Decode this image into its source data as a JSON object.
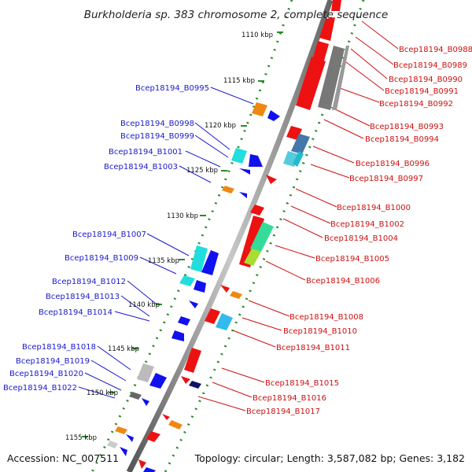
{
  "title": "Burkholderia sp. 383 chromosome 2, complete sequence",
  "accession": "Accession: NC_007511",
  "topology": "Topology: circular; Length: 3,587,082 bp; Genes: 3,182",
  "ticks": [
    "1110 kbp",
    "1115 kbp",
    "1120 kbp",
    "1125 kbp",
    "1130 kbp",
    "1135 kbp",
    "1140 kbp",
    "1145 kbp",
    "1150 kbp",
    "1155 kbp"
  ],
  "left_labels": [
    "Bcep18194_B0995",
    "Bcep18194_B0998",
    "Bcep18194_B0999",
    "Bcep18194_B1001",
    "Bcep18194_B1003",
    "Bcep18194_B1007",
    "Bcep18194_B1009",
    "Bcep18194_B1012",
    "Bcep18194_B1013",
    "Bcep18194_B1014",
    "Bcep18194_B1018",
    "Bcep18194_B1019",
    "Bcep18194_B1020",
    "Bcep18194_B1022"
  ],
  "right_labels": [
    "Bcep18194_B0988",
    "Bcep18194_B0989",
    "Bcep18194_B0990",
    "Bcep18194_B0991",
    "Bcep18194_B0992",
    "Bcep18194_B0993",
    "Bcep18194_B0994",
    "Bcep18194_B0996",
    "Bcep18194_B0997",
    "Bcep18194_B1000",
    "Bcep18194_B1002",
    "Bcep18194_B1004",
    "Bcep18194_B1005",
    "Bcep18194_B1006",
    "Bcep18194_B1008",
    "Bcep18194_B1010",
    "Bcep18194_B1011",
    "Bcep18194_B1015",
    "Bcep18194_B1016",
    "Bcep18194_B1017"
  ],
  "colors": {
    "left_label": "#1a1acc",
    "right_label": "#cc1111",
    "backbone": "#888888",
    "tick_ring": "#2a8a2a"
  }
}
